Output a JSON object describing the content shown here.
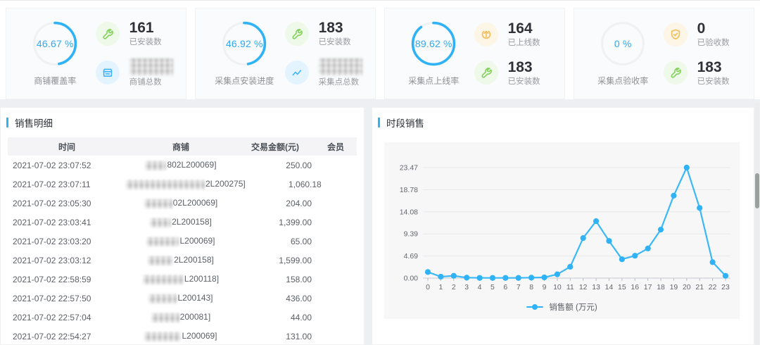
{
  "accent_color": "#2fb3f6",
  "cards": [
    {
      "percent": "46.67 %",
      "percent_value": 46.67,
      "label": "商铺覆盖率",
      "stats": [
        {
          "icon": "wrench-icon",
          "tint": "green",
          "value": "161",
          "label": "已安装数",
          "masked": false
        },
        {
          "icon": "shop-icon",
          "tint": "blue",
          "value": "",
          "label": "商铺总数",
          "masked": true
        }
      ]
    },
    {
      "percent": "46.92 %",
      "percent_value": 46.92,
      "label": "采集点安装进度",
      "stats": [
        {
          "icon": "wrench-icon",
          "tint": "green",
          "value": "183",
          "label": "已安装数",
          "masked": false
        },
        {
          "icon": "trend-icon",
          "tint": "blue",
          "value": "",
          "label": "采集点总数",
          "masked": true
        }
      ]
    },
    {
      "percent": "89.62 %",
      "percent_value": 89.62,
      "label": "采集点上线率",
      "stats": [
        {
          "icon": "arrow-up-icon",
          "tint": "orange",
          "value": "164",
          "label": "已上线数",
          "masked": false
        },
        {
          "icon": "wrench-icon",
          "tint": "green",
          "value": "183",
          "label": "已安装数",
          "masked": false
        }
      ]
    },
    {
      "percent": "0 %",
      "percent_value": 0,
      "label": "采集点验收率",
      "stats": [
        {
          "icon": "shield-check-icon",
          "tint": "orange",
          "value": "0",
          "label": "已验收数",
          "masked": false
        },
        {
          "icon": "wrench-icon",
          "tint": "green",
          "value": "183",
          "label": "已安装数",
          "masked": false
        }
      ]
    }
  ],
  "sales_panel": {
    "title": "销售明细",
    "columns": [
      "时间",
      "商铺",
      "交易金额(元)",
      "会员"
    ],
    "rows": [
      {
        "time": "2021-07-02 23:07:52",
        "shop_mask_w": 30,
        "shop": "802L200069]",
        "amount": "250.00",
        "member": ""
      },
      {
        "time": "2021-07-02 23:07:11",
        "shop_mask_w": 112,
        "shop": "2L200275]",
        "amount": "1,060.18",
        "member": ""
      },
      {
        "time": "2021-07-02 23:05:30",
        "shop_mask_w": 40,
        "shop": "02L200069]",
        "amount": "204.00",
        "member": ""
      },
      {
        "time": "2021-07-02 23:03:41",
        "shop_mask_w": 30,
        "shop": "2L200158]",
        "amount": "1,399.00",
        "member": ""
      },
      {
        "time": "2021-07-02 23:03:20",
        "shop_mask_w": 46,
        "shop": "L200069]",
        "amount": "65.00",
        "member": ""
      },
      {
        "time": "2021-07-02 23:03:12",
        "shop_mask_w": 36,
        "shop": "2L200158]",
        "amount": "1,599.00",
        "member": ""
      },
      {
        "time": "2021-07-02 22:58:59",
        "shop_mask_w": 58,
        "shop": "L200118]",
        "amount": "158.00",
        "member": ""
      },
      {
        "time": "2021-07-02 22:57:50",
        "shop_mask_w": 40,
        "shop": "L200143]",
        "amount": "436.00",
        "member": ""
      },
      {
        "time": "2021-07-02 22:57:04",
        "shop_mask_w": 40,
        "shop": "200081]",
        "amount": "44.00",
        "member": ""
      },
      {
        "time": "2021-07-02 22:54:27",
        "shop_mask_w": 52,
        "shop": "L200069]",
        "amount": "131.00",
        "member": ""
      }
    ]
  },
  "chart_panel": {
    "title": "时段销售"
  },
  "chart_data": {
    "type": "line",
    "title": "时段销售",
    "x": [
      0,
      1,
      2,
      3,
      4,
      5,
      6,
      7,
      8,
      9,
      10,
      11,
      12,
      13,
      14,
      15,
      16,
      17,
      18,
      19,
      20,
      21,
      22,
      23
    ],
    "series": [
      {
        "name": "销售额 (万元)",
        "values": [
          1.3,
          0.3,
          0.5,
          0.1,
          0.05,
          0.05,
          0.05,
          0.05,
          0.1,
          0.15,
          0.8,
          2.4,
          8.5,
          12.1,
          7.9,
          4.0,
          4.75,
          6.3,
          10.3,
          17.5,
          23.47,
          14.9,
          3.4,
          0.5
        ]
      }
    ],
    "xlabel": "",
    "ylabel": "",
    "yticks": [
      0.0,
      4.69,
      9.39,
      14.08,
      18.78,
      23.47
    ],
    "ylim": [
      0,
      23.47
    ],
    "grid": true,
    "legend_position": "bottom",
    "line_color": "#3bb8f7"
  }
}
